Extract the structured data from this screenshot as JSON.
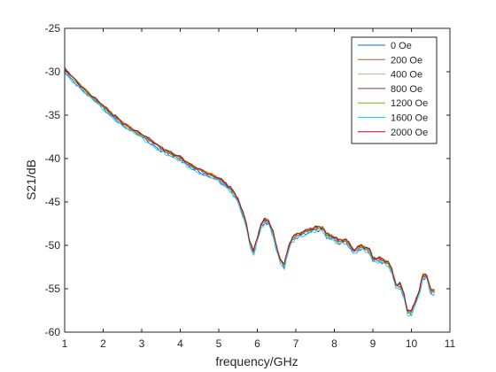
{
  "chart_data": {
    "type": "line",
    "title": "",
    "xlabel": "frequency/GHz",
    "ylabel": "S21/dB",
    "xlim": [
      1,
      11
    ],
    "ylim": [
      -60,
      -25
    ],
    "xticks": [
      1,
      2,
      3,
      4,
      5,
      6,
      7,
      8,
      9,
      10,
      11
    ],
    "yticks": [
      -60,
      -55,
      -50,
      -45,
      -40,
      -35,
      -30,
      -25
    ],
    "grid": false,
    "legend_position": "top-right",
    "x": [
      1.0,
      1.5,
      2.0,
      2.2,
      2.5,
      3.0,
      3.5,
      3.7,
      4.0,
      4.3,
      4.5,
      5.0,
      5.3,
      5.5,
      5.7,
      5.8,
      5.9,
      6.0,
      6.1,
      6.2,
      6.3,
      6.4,
      6.5,
      6.6,
      6.7,
      6.8,
      6.9,
      7.0,
      7.2,
      7.5,
      7.7,
      7.8,
      8.0,
      8.1,
      8.3,
      8.5,
      8.7,
      8.9,
      9.0,
      9.2,
      9.4,
      9.5,
      9.6,
      9.7,
      9.8,
      9.9,
      10.0,
      10.2,
      10.3,
      10.4,
      10.5,
      10.6
    ],
    "base_values": [
      -29.8,
      -32.0,
      -34.0,
      -34.8,
      -35.9,
      -37.3,
      -38.8,
      -39.3,
      -39.9,
      -40.9,
      -41.3,
      -42.3,
      -43.4,
      -44.7,
      -47.3,
      -49.5,
      -50.8,
      -49.2,
      -47.6,
      -47.1,
      -47.3,
      -48.4,
      -50.3,
      -51.7,
      -52.3,
      -50.4,
      -49.2,
      -48.9,
      -48.5,
      -48.0,
      -48.0,
      -48.8,
      -49.1,
      -49.5,
      -49.4,
      -50.6,
      -50.1,
      -50.5,
      -51.5,
      -51.6,
      -52.0,
      -53.0,
      -54.6,
      -54.5,
      -55.6,
      -57.6,
      -57.7,
      -55.3,
      -53.5,
      -53.5,
      -55.2,
      -55.4
    ],
    "series": [
      {
        "name": "0 Oe",
        "color": "#0072BD",
        "offset": -0.25
      },
      {
        "name": "200 Oe",
        "color": "#D95319",
        "offset": 0.05
      },
      {
        "name": "400 Oe",
        "color": "#EDB120",
        "offset": 0.1
      },
      {
        "name": "800 Oe",
        "color": "#7E2F8E",
        "offset": 0.0
      },
      {
        "name": "1200 Oe",
        "color": "#77AC30",
        "offset": 0.0
      },
      {
        "name": "1600 Oe",
        "color": "#4DBEEE",
        "offset": -0.35
      },
      {
        "name": "2000 Oe",
        "color": "#A2142F",
        "offset": 0.1
      }
    ]
  }
}
